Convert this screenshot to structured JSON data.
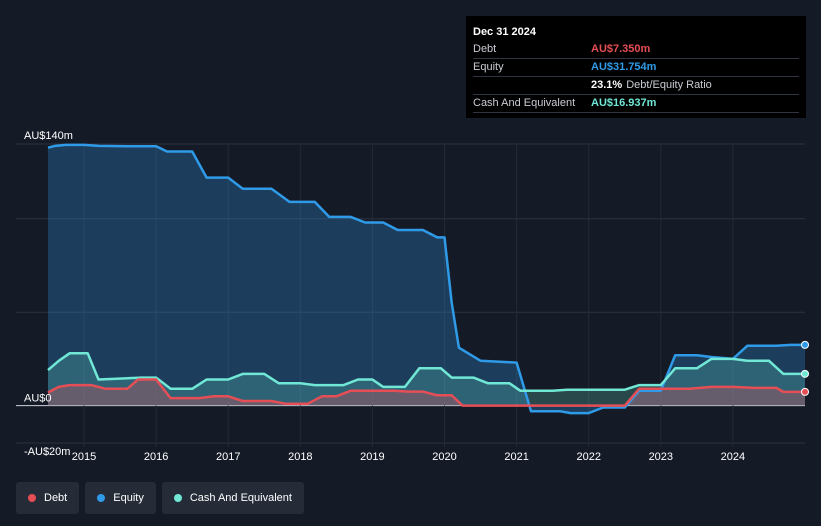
{
  "tooltip": {
    "date": "Dec 31 2024",
    "rows": [
      {
        "label": "Debt",
        "value": "AU$7.350m",
        "color": "#e64e56"
      },
      {
        "label": "Equity",
        "value": "AU$31.754m",
        "color": "#2f9be8"
      },
      {
        "label": "",
        "value": "23.1%",
        "suffix": "Debt/Equity Ratio",
        "color": "#ffffff"
      },
      {
        "label": "Cash And Equivalent",
        "value": "AU$16.937m",
        "color": "#71e7d6"
      }
    ]
  },
  "legend": [
    {
      "label": "Debt",
      "color": "#e64e56"
    },
    {
      "label": "Equity",
      "color": "#2f9be8"
    },
    {
      "label": "Cash And Equivalent",
      "color": "#71e7d6"
    }
  ],
  "chart_data": {
    "type": "area",
    "title": "",
    "xlabel": "",
    "ylabel": "",
    "ylim": [
      -20,
      140
    ],
    "xlim": [
      2014.5,
      2025.0
    ],
    "y_tick_labels": [
      {
        "value": 140,
        "label": "AU$140m"
      },
      {
        "value": 0,
        "label": "AU$0"
      },
      {
        "value": -20,
        "label": "-AU$20m"
      }
    ],
    "x_ticks": [
      2015,
      2016,
      2017,
      2018,
      2019,
      2020,
      2021,
      2022,
      2023,
      2024
    ],
    "grid": true,
    "series": [
      {
        "name": "Equity",
        "color": "#2f9be8",
        "points": [
          [
            2014.5,
            138
          ],
          [
            2014.6,
            139
          ],
          [
            2014.75,
            139.5
          ],
          [
            2015.0,
            139.5
          ],
          [
            2015.2,
            139
          ],
          [
            2015.6,
            138.8
          ],
          [
            2016.0,
            138.8
          ],
          [
            2016.15,
            136
          ],
          [
            2016.5,
            136
          ],
          [
            2016.7,
            122
          ],
          [
            2017.0,
            122
          ],
          [
            2017.2,
            116
          ],
          [
            2017.6,
            116
          ],
          [
            2017.85,
            109
          ],
          [
            2018.2,
            109
          ],
          [
            2018.4,
            101
          ],
          [
            2018.7,
            101
          ],
          [
            2018.9,
            98
          ],
          [
            2019.15,
            98
          ],
          [
            2019.35,
            94
          ],
          [
            2019.7,
            94
          ],
          [
            2019.9,
            90
          ],
          [
            2020.0,
            90
          ],
          [
            2020.1,
            55
          ],
          [
            2020.2,
            31
          ],
          [
            2020.5,
            24
          ],
          [
            2021.0,
            23
          ],
          [
            2021.2,
            -3
          ],
          [
            2021.6,
            -3
          ],
          [
            2021.75,
            -4
          ],
          [
            2022.0,
            -4
          ],
          [
            2022.2,
            -1
          ],
          [
            2022.5,
            -1
          ],
          [
            2022.7,
            8
          ],
          [
            2023.0,
            8
          ],
          [
            2023.2,
            27
          ],
          [
            2023.5,
            27
          ],
          [
            2023.7,
            26
          ],
          [
            2024.0,
            25
          ],
          [
            2024.2,
            32
          ],
          [
            2024.6,
            32
          ],
          [
            2024.8,
            32.5
          ],
          [
            2025.0,
            32.5
          ]
        ]
      },
      {
        "name": "Cash And Equivalent",
        "color": "#71e7d6",
        "points": [
          [
            2014.5,
            19
          ],
          [
            2014.65,
            24
          ],
          [
            2014.8,
            28
          ],
          [
            2015.05,
            28
          ],
          [
            2015.2,
            14
          ],
          [
            2015.8,
            15
          ],
          [
            2016.0,
            15
          ],
          [
            2016.2,
            9
          ],
          [
            2016.5,
            9
          ],
          [
            2016.7,
            14
          ],
          [
            2017.0,
            14
          ],
          [
            2017.2,
            17
          ],
          [
            2017.5,
            17
          ],
          [
            2017.7,
            12
          ],
          [
            2018.0,
            12
          ],
          [
            2018.2,
            11
          ],
          [
            2018.6,
            11
          ],
          [
            2018.8,
            14
          ],
          [
            2019.0,
            14
          ],
          [
            2019.15,
            10
          ],
          [
            2019.45,
            10
          ],
          [
            2019.65,
            20
          ],
          [
            2019.95,
            20
          ],
          [
            2020.1,
            15
          ],
          [
            2020.4,
            15
          ],
          [
            2020.6,
            12
          ],
          [
            2020.9,
            12
          ],
          [
            2021.05,
            8
          ],
          [
            2021.5,
            8
          ],
          [
            2021.7,
            8.5
          ],
          [
            2022.0,
            8.5
          ],
          [
            2022.5,
            8.5
          ],
          [
            2022.7,
            11
          ],
          [
            2023.0,
            11
          ],
          [
            2023.2,
            20
          ],
          [
            2023.5,
            20
          ],
          [
            2023.7,
            25
          ],
          [
            2024.0,
            25
          ],
          [
            2024.2,
            24
          ],
          [
            2024.5,
            24
          ],
          [
            2024.7,
            17
          ],
          [
            2025.0,
            17
          ]
        ]
      },
      {
        "name": "Debt",
        "color": "#e64e56",
        "points": [
          [
            2014.5,
            7
          ],
          [
            2014.65,
            10
          ],
          [
            2014.8,
            11
          ],
          [
            2015.1,
            11
          ],
          [
            2015.3,
            9
          ],
          [
            2015.6,
            9
          ],
          [
            2015.75,
            14
          ],
          [
            2016.0,
            14
          ],
          [
            2016.2,
            4
          ],
          [
            2016.6,
            4
          ],
          [
            2016.8,
            5
          ],
          [
            2017.0,
            5
          ],
          [
            2017.2,
            2.5
          ],
          [
            2017.6,
            2.5
          ],
          [
            2017.8,
            1
          ],
          [
            2018.1,
            1
          ],
          [
            2018.3,
            5
          ],
          [
            2018.5,
            5
          ],
          [
            2018.7,
            8
          ],
          [
            2019.3,
            8
          ],
          [
            2019.5,
            7.5
          ],
          [
            2019.7,
            7.5
          ],
          [
            2019.9,
            5.5
          ],
          [
            2020.1,
            5.5
          ],
          [
            2020.25,
            0
          ],
          [
            2022.5,
            0
          ],
          [
            2022.7,
            9
          ],
          [
            2023.4,
            9
          ],
          [
            2023.7,
            10
          ],
          [
            2024.0,
            10
          ],
          [
            2024.3,
            9.5
          ],
          [
            2024.6,
            9.5
          ],
          [
            2024.7,
            7.35
          ],
          [
            2025.0,
            7.35
          ]
        ]
      }
    ]
  }
}
